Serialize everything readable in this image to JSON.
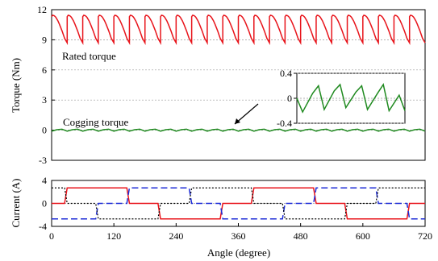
{
  "chart_data": [
    {
      "type": "line",
      "ylabel": "Torque (Nm)",
      "xlabel": "",
      "xlim": [
        0,
        720
      ],
      "ylim": [
        -3,
        12
      ],
      "yticks": [
        -3,
        0,
        3,
        6,
        9,
        12
      ],
      "grid": "horizontal dotted",
      "series": [
        {
          "name": "Rated torque",
          "color": "#e8141b",
          "description_points": {
            "period_deg": 30,
            "x": [
              0,
              2,
              5,
              8,
              12,
              15,
              20,
              25,
              30
            ],
            "y": [
              11.3,
              11.45,
              11.4,
              11.25,
              10.9,
              10.55,
              9.9,
              9.15,
              8.7
            ]
          }
        },
        {
          "name": "Cogging torque",
          "color": "#1f8a1f",
          "description_points": {
            "period_deg": 30,
            "x": [
              0,
              10,
              20,
              30
            ],
            "y": [
              -0.1,
              0.05,
              0.1,
              -0.1
            ]
          }
        }
      ],
      "inset": {
        "ylim": [
          -0.4,
          0.4
        ],
        "yticks": [
          -0.4,
          0,
          0.4
        ],
        "series": "Cogging torque",
        "x": [
          0,
          8,
          22,
          30,
          38,
          52,
          60,
          68,
          82,
          90,
          98,
          112,
          120,
          128,
          142,
          150
        ],
        "y": [
          0.0,
          -0.22,
          0.08,
          0.2,
          -0.18,
          0.12,
          0.22,
          -0.15,
          0.1,
          0.2,
          -0.18,
          0.08,
          0.22,
          -0.2,
          0.05,
          -0.2
        ]
      }
    },
    {
      "type": "line",
      "ylabel": "Current (A)",
      "xlabel": "Angle (degree)",
      "xlim": [
        0,
        720
      ],
      "ylim": [
        -4,
        4
      ],
      "yticks": [
        -4,
        0,
        4
      ],
      "xticks": [
        0,
        120,
        240,
        360,
        480,
        600,
        720
      ],
      "grid": "horizontal dotted",
      "series": [
        {
          "style": "solid",
          "color": "#e8141b",
          "x": [
            0,
            25,
            30,
            145,
            150,
            205,
            210,
            325,
            330,
            385,
            390,
            505,
            510,
            565,
            570,
            685,
            690,
            720
          ],
          "y": [
            0,
            0,
            2.7,
            2.7,
            0,
            0,
            -2.7,
            -2.7,
            0,
            0,
            2.7,
            2.7,
            0,
            0,
            -2.7,
            -2.7,
            0,
            0
          ]
        },
        {
          "style": "dashed",
          "color": "#1c2bd6",
          "x": [
            0,
            85,
            90,
            145,
            150,
            265,
            270,
            325,
            330,
            445,
            450,
            505,
            510,
            625,
            630,
            685,
            690,
            720
          ],
          "y": [
            -2.7,
            -2.7,
            0,
            0,
            2.7,
            2.7,
            0,
            0,
            -2.7,
            -2.7,
            0,
            0,
            2.7,
            2.7,
            0,
            0,
            -2.7,
            -2.7
          ]
        },
        {
          "style": "dotted",
          "color": "#000000",
          "x": [
            0,
            25,
            30,
            85,
            90,
            205,
            210,
            265,
            270,
            385,
            390,
            445,
            450,
            565,
            570,
            625,
            630,
            720
          ],
          "y": [
            2.7,
            2.7,
            0,
            0,
            -2.7,
            -2.7,
            0,
            0,
            2.7,
            2.7,
            0,
            0,
            -2.7,
            -2.7,
            0,
            0,
            2.7,
            2.7
          ]
        }
      ]
    }
  ],
  "annotations": {
    "rated": "Rated torque",
    "cogging": "Cogging torque"
  }
}
